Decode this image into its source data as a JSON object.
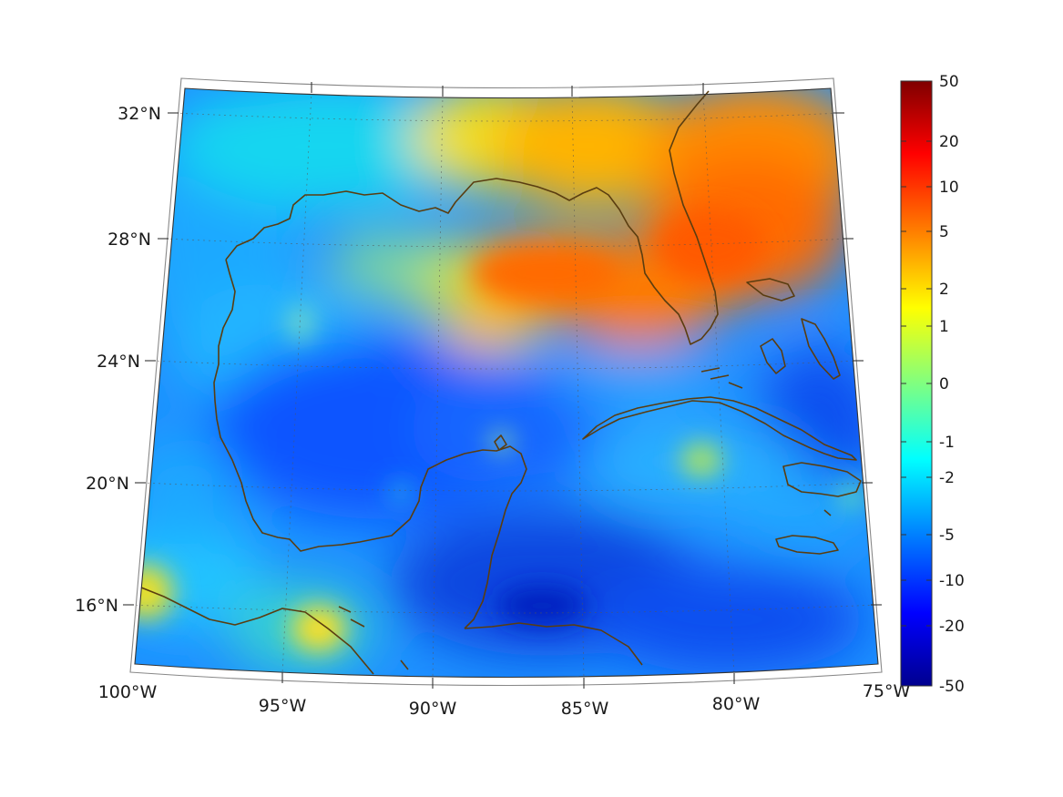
{
  "map": {
    "longitude_labels": [
      "100°W",
      "95°W",
      "90°W",
      "85°W",
      "80°W",
      "75°W"
    ],
    "latitude_labels": [
      "32°N",
      "28°N",
      "24°N",
      "20°N",
      "16°N"
    ],
    "coastline_color": "#5a3d10",
    "graticule_color": "#555555"
  },
  "colorbar": {
    "tick_labels": [
      "50",
      "20",
      "10",
      "5",
      "2",
      "1",
      "0",
      "-1",
      "-2",
      "-5",
      "-10",
      "-20",
      "-50"
    ],
    "colors": [
      "#7f0000",
      "#ff0000",
      "#ff8000",
      "#ffff00",
      "#80ff80",
      "#00ffff",
      "#0080ff",
      "#0000ff",
      "#00008f"
    ]
  }
}
